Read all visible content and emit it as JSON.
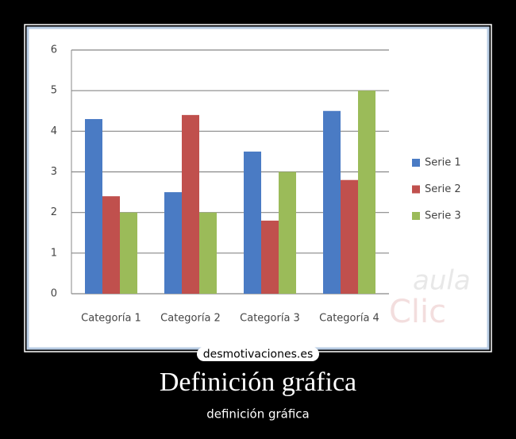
{
  "chart_data": {
    "type": "bar",
    "categories": [
      "Categoría 1",
      "Categoría 2",
      "Categoría 3",
      "Categoría 4"
    ],
    "series": [
      {
        "name": "Serie 1",
        "color": "#4a7bc4",
        "values": [
          4.3,
          2.5,
          3.5,
          4.5
        ]
      },
      {
        "name": "Serie 2",
        "color": "#c0504d",
        "values": [
          2.4,
          4.4,
          1.8,
          2.8
        ]
      },
      {
        "name": "Serie 3",
        "color": "#9bbb59",
        "values": [
          2,
          2,
          3,
          5
        ]
      }
    ],
    "ylim": [
      0,
      6
    ],
    "yticks": [
      0,
      1,
      2,
      3,
      4,
      5,
      6
    ],
    "grid": true,
    "legend": "right",
    "annotations": [
      "aula",
      "Clic"
    ]
  },
  "site": "desmotivaciones.es",
  "poster": {
    "title": "Definición gráfica",
    "caption": "definición gráfica"
  }
}
